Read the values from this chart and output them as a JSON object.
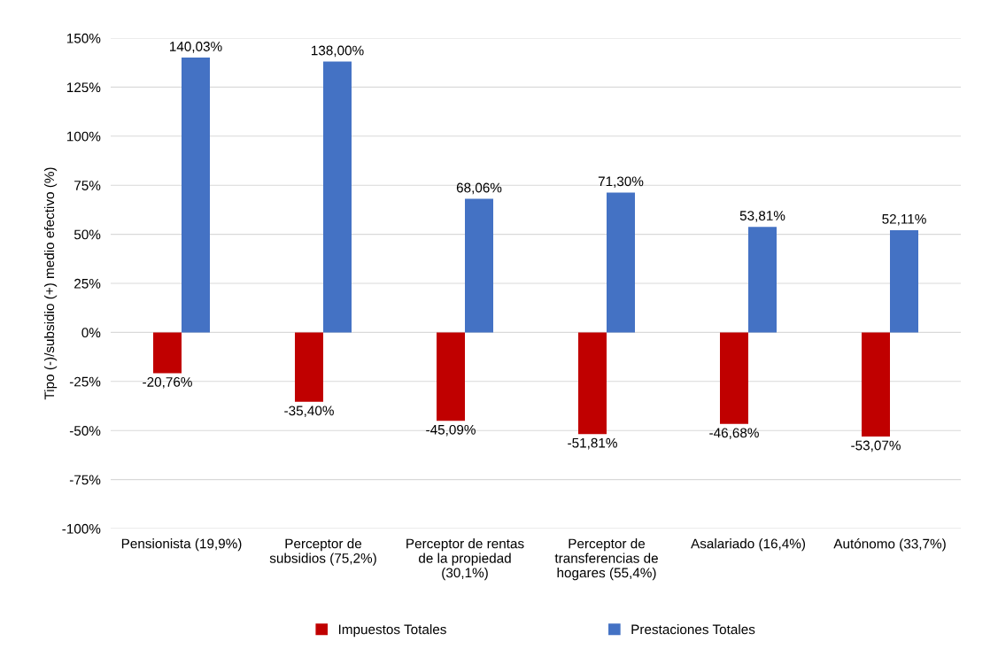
{
  "chart_data": {
    "type": "bar",
    "ylabel": "Tipo (-)/subsidio (+) medio efectivo (%)",
    "categories": [
      "Pensionista (19,9%)",
      "Perceptor de\nsubsidios (75,2%)",
      "Perceptor de rentas\nde la propiedad\n(30,1%)",
      "Perceptor de\ntransferencias de\nhogares (55,4%)",
      "Asalariado (16,4%)",
      "Autónomo (33,7%)"
    ],
    "series": [
      {
        "name": "Impuestos Totales",
        "color": "#c00000",
        "values": [
          -20.76,
          -35.4,
          -45.09,
          -51.81,
          -46.68,
          -53.07
        ],
        "value_labels": [
          "-20,76%",
          "-35,40%",
          "-45,09%",
          "-51,81%",
          "-46,68%",
          "-53,07%"
        ]
      },
      {
        "name": "Prestaciones Totales",
        "color": "#4472c4",
        "values": [
          140.03,
          138.0,
          68.06,
          71.3,
          53.81,
          52.11
        ],
        "value_labels": [
          "140,03%",
          "138,00%",
          "68,06%",
          "71,30%",
          "53,81%",
          "52,11%"
        ]
      }
    ],
    "ylim": [
      -100,
      150
    ],
    "yticks": [
      {
        "value": -100,
        "label": "-100%"
      },
      {
        "value": -75,
        "label": "-75%"
      },
      {
        "value": -50,
        "label": "-50%"
      },
      {
        "value": -25,
        "label": "-25%"
      },
      {
        "value": 0,
        "label": "0%"
      },
      {
        "value": 25,
        "label": "25%"
      },
      {
        "value": 50,
        "label": "50%"
      },
      {
        "value": 75,
        "label": "75%"
      },
      {
        "value": 100,
        "label": "100%"
      },
      {
        "value": 125,
        "label": "125%"
      },
      {
        "value": 150,
        "label": "150%"
      }
    ],
    "grid": "y",
    "legend": "bottom"
  }
}
